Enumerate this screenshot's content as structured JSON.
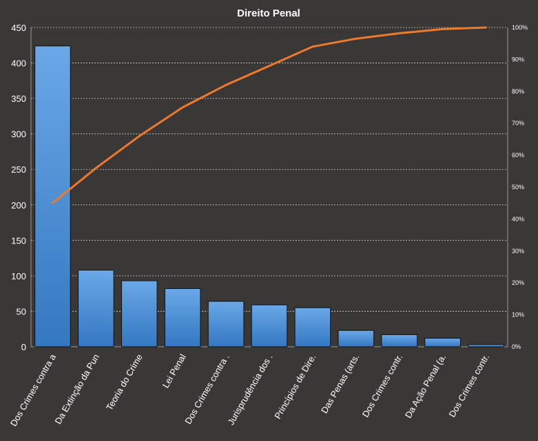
{
  "chart_data": {
    "type": "bar",
    "title": "Direito  Penal",
    "categories": [
      "Dos Crimes contra a",
      "Da Extinção da Pun",
      "Teoria do Crime",
      "Lei Penal",
      "Dos Crimes contra .",
      "Jurisprudência dos .",
      "Princípios de Dire.",
      "Das Penas (arts.",
      "Dos Crimes contr.",
      "Da Ação Penal (a.",
      "Dos Crimes contr."
    ],
    "series": [
      {
        "type": "bar",
        "values": [
          424,
          108,
          93,
          82,
          64,
          59,
          55,
          23,
          17,
          12,
          3
        ]
      },
      {
        "type": "line",
        "axis": "secondary",
        "values": [
          45,
          56,
          66,
          75,
          82,
          88,
          94,
          96.5,
          98.2,
          99.5,
          100
        ]
      }
    ],
    "ylim": [
      0,
      450
    ],
    "yticks": [
      "0",
      "50",
      "100",
      "150",
      "200",
      "250",
      "300",
      "350",
      "400",
      "450"
    ],
    "y2lim": [
      0,
      100
    ],
    "y2ticks": [
      "0%",
      "10%",
      "20%",
      "30%",
      "40%",
      "50%",
      "60%",
      "70%",
      "80%",
      "90%",
      "100%"
    ],
    "grid": true,
    "colors": {
      "background": "#3a3737",
      "bar_top": "#6aa8e6",
      "bar_bottom": "#3478c2",
      "bar_edge": "#111111",
      "line": "#ee7a2a",
      "grid": "#d0d0d0",
      "text": "#ffffff"
    }
  }
}
